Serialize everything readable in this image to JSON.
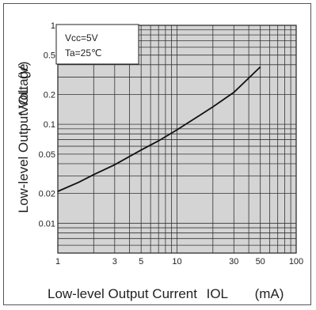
{
  "chart_data": {
    "type": "line",
    "xlabel": "Low-level Output Current",
    "xlabel_symbol": "IOL",
    "xlabel_unit": "(mA)",
    "ylabel": "Low-level Output Voltage",
    "ylabel_symbol": "VOL",
    "ylabel_unit": "(V)",
    "x_scale": "log",
    "y_scale": "log",
    "xlim": [
      1,
      100
    ],
    "ylim": [
      0.005,
      1
    ],
    "x_ticks": [
      1,
      3,
      5,
      10,
      30,
      50,
      100
    ],
    "x_tick_labels": [
      "1",
      "3",
      "5",
      "10",
      "30",
      "50",
      "100"
    ],
    "y_ticks": [
      0.01,
      0.02,
      0.05,
      0.1,
      0.2,
      0.5,
      1
    ],
    "y_tick_labels": [
      "0.01",
      "0.02",
      "0.05",
      "0.1",
      "0.2",
      "0.5",
      "1"
    ],
    "grid": true,
    "conditions": [
      "Vcc=5V",
      "Ta=25℃"
    ],
    "series": [
      {
        "x": [
          1,
          1.5,
          2,
          3,
          5,
          7,
          10,
          15,
          20,
          30,
          50
        ],
        "y": [
          0.021,
          0.026,
          0.031,
          0.039,
          0.055,
          0.068,
          0.088,
          0.12,
          0.15,
          0.21,
          0.38
        ]
      }
    ],
    "colors": {
      "plot_bg": "#d4d4d4",
      "grid": "#333333",
      "line": "#111111"
    }
  }
}
